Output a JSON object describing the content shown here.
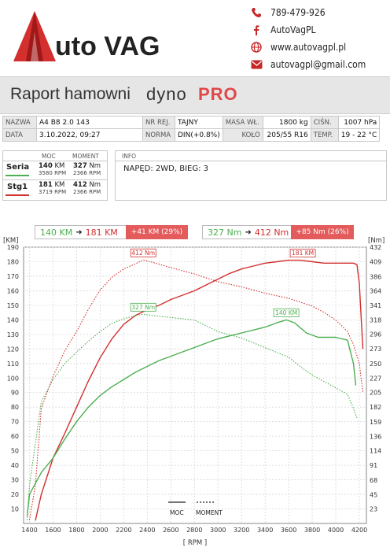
{
  "header": {
    "logo_text": "uto VAG",
    "contacts": [
      {
        "icon": "phone-icon",
        "text": "789-479-926"
      },
      {
        "icon": "facebook-icon",
        "text": "AutoVagPL"
      },
      {
        "icon": "globe-icon",
        "text": "www.autovagpl.pl"
      },
      {
        "icon": "mail-icon",
        "text": "autovagpl@gmail.com"
      }
    ]
  },
  "title": {
    "text": "Raport hamowni",
    "brand1": "dyno",
    "brand2": "PRO"
  },
  "info_table": {
    "nazwa_label": "NAZWA",
    "nazwa": "A4 B8 2.0 143",
    "nrrej_label": "NR REJ.",
    "nrrej": "TAJNY",
    "masa_label": "MASA WŁ.",
    "masa": "1800 kg",
    "cisn_label": "CIŚN.",
    "cisn": "1007 hPa",
    "data_label": "DATA",
    "data": "3.10.2022, 09:27",
    "norma_label": "NORMA",
    "norma": "DIN(+0.8%)",
    "kolo_label": "KOŁO",
    "kolo": "205/55 R16",
    "temp_label": "TEMP.",
    "temp": "19 - 22 °C"
  },
  "results": {
    "moc_header": "MOC",
    "moment_header": "MOMENT",
    "rows": [
      {
        "name": "Seria",
        "moc": "140",
        "moc_unit": "KM",
        "moc_rpm": "3580",
        "moment": "327",
        "moment_unit": "Nm",
        "moment_rpm": "2366",
        "rpm_unit": "RPM",
        "color": "#4caf50"
      },
      {
        "name": "Stg1",
        "moc": "181",
        "moc_unit": "KM",
        "moc_rpm": "3719",
        "moment": "412",
        "moment_unit": "Nm",
        "moment_rpm": "2366",
        "rpm_unit": "RPM",
        "color": "#d32f2f"
      }
    ]
  },
  "info_box": {
    "title": "INFO",
    "text": "NAPĘD: 2WD,  BIEG: 3"
  },
  "chart_summary": {
    "power_from": "140 KM",
    "power_to": "181 KM",
    "power_gain": "+41 KM  (29%)",
    "torque_from": "327 Nm",
    "torque_to": "412 Nm",
    "torque_gain": "+85 Nm  (26%)"
  },
  "chart_data": {
    "type": "line",
    "xlabel": "[ RPM ]",
    "ylabel_left": "[KM]",
    "ylabel_right": "[Nm]",
    "xlim": [
      1350,
      4260
    ],
    "ylim_left": [
      0,
      190
    ],
    "ylim_right": [
      0,
      432
    ],
    "x_ticks": [
      1400,
      1600,
      1800,
      2000,
      2200,
      2400,
      2600,
      2800,
      3000,
      3200,
      3400,
      3600,
      3800,
      4000,
      4200
    ],
    "y_ticks_left": [
      10,
      20,
      30,
      40,
      50,
      60,
      70,
      80,
      90,
      100,
      110,
      120,
      130,
      140,
      150,
      160,
      170,
      180,
      190
    ],
    "y_ticks_right": [
      23,
      45,
      68,
      91,
      114,
      136,
      159,
      182,
      205,
      227,
      250,
      273,
      296,
      318,
      341,
      364,
      386,
      409,
      432
    ],
    "legend": {
      "moc": "MOC",
      "moment": "MOMENT"
    },
    "grid": true,
    "colors": {
      "seria": "#4caf50",
      "stg1": "#d32f2f"
    },
    "peak_labels": [
      {
        "series": "Stg1 MOC",
        "text": "181 KM",
        "x": 3720,
        "y": 181
      },
      {
        "series": "Stg1 MOMENT",
        "text": "412 Nm",
        "x": 2366,
        "y": 412
      },
      {
        "series": "Seria MOC",
        "text": "140 KM",
        "x": 3580,
        "y": 140
      },
      {
        "series": "Seria MOMENT",
        "text": "327 Nm",
        "x": 2366,
        "y": 327
      }
    ],
    "series": [
      {
        "name": "Stg1",
        "quantity": "MOC",
        "axis": "left",
        "style": "solid",
        "x": [
          1450,
          1500,
          1600,
          1700,
          1800,
          1900,
          2000,
          2100,
          2200,
          2300,
          2400,
          2500,
          2600,
          2700,
          2800,
          2900,
          3000,
          3100,
          3200,
          3300,
          3400,
          3500,
          3600,
          3700,
          3800,
          3900,
          4000,
          4100,
          4150,
          4180,
          4200,
          4230
        ],
        "y": [
          2,
          20,
          45,
          62,
          80,
          98,
          114,
          127,
          137,
          143,
          147,
          150,
          154,
          157,
          160,
          164,
          168,
          172,
          175,
          177,
          179,
          180,
          181,
          181,
          180,
          179,
          179,
          179,
          179,
          178,
          165,
          120
        ]
      },
      {
        "name": "Seria",
        "quantity": "MOC",
        "axis": "left",
        "style": "solid",
        "x": [
          1380,
          1400,
          1500,
          1600,
          1700,
          1800,
          1900,
          2000,
          2100,
          2200,
          2300,
          2400,
          2500,
          2600,
          2700,
          2800,
          2900,
          3000,
          3100,
          3200,
          3300,
          3400,
          3500,
          3580,
          3650,
          3750,
          3850,
          4000,
          4100,
          4150,
          4170
        ],
        "y": [
          5,
          20,
          35,
          45,
          58,
          70,
          80,
          88,
          94,
          99,
          104,
          108,
          112,
          115,
          118,
          121,
          124,
          127,
          129,
          131,
          133,
          135,
          138,
          140,
          138,
          131,
          128,
          128,
          126,
          110,
          95
        ]
      },
      {
        "name": "Stg1",
        "quantity": "MOMENT",
        "axis": "right",
        "style": "dotted",
        "x": [
          1400,
          1450,
          1500,
          1600,
          1700,
          1800,
          1900,
          2000,
          2100,
          2200,
          2300,
          2366,
          2450,
          2600,
          2800,
          3000,
          3200,
          3400,
          3600,
          3800,
          3900,
          4000,
          4100,
          4150,
          4200,
          4230
        ],
        "y": [
          5,
          60,
          180,
          230,
          270,
          300,
          335,
          365,
          385,
          398,
          406,
          412,
          408,
          400,
          390,
          378,
          370,
          360,
          352,
          340,
          330,
          318,
          300,
          280,
          250,
          205
        ]
      },
      {
        "name": "Seria",
        "quantity": "MOMENT",
        "axis": "right",
        "style": "dotted",
        "x": [
          1380,
          1400,
          1500,
          1600,
          1700,
          1800,
          1900,
          2000,
          2100,
          2200,
          2300,
          2366,
          2450,
          2600,
          2800,
          3000,
          3200,
          3400,
          3600,
          3700,
          3800,
          3900,
          4000,
          4100,
          4150,
          4180
        ],
        "y": [
          5,
          60,
          190,
          225,
          250,
          268,
          285,
          300,
          313,
          320,
          325,
          327,
          325,
          322,
          318,
          300,
          290,
          275,
          260,
          245,
          232,
          222,
          212,
          202,
          180,
          165
        ]
      }
    ]
  }
}
